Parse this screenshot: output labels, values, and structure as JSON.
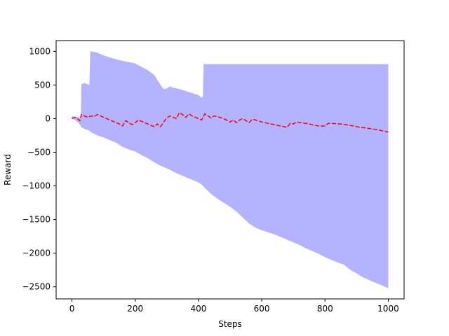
{
  "chart_data": {
    "type": "line",
    "xlabel": "Steps",
    "ylabel": "Reward",
    "xlim": [
      -50,
      1050
    ],
    "ylim": [
      -2680,
      1160
    ],
    "xticks": [
      0,
      200,
      400,
      600,
      800,
      1000
    ],
    "yticks": [
      -2500,
      -2000,
      -1500,
      -1000,
      -500,
      0,
      500,
      1000
    ],
    "grid": false,
    "colors": {
      "band": "#b3b3ff",
      "mean": "#ff0000"
    },
    "series": [
      {
        "type": "band",
        "x": [
          0,
          10,
          20,
          25,
          28,
          30,
          40,
          50,
          55,
          58,
          60,
          80,
          100,
          120,
          140,
          160,
          180,
          200,
          220,
          240,
          260,
          280,
          290,
          300,
          310,
          320,
          340,
          360,
          380,
          400,
          410,
          414,
          416,
          418,
          420,
          440,
          460,
          480,
          500,
          520,
          540,
          560,
          580,
          600,
          620,
          640,
          660,
          680,
          700,
          720,
          740,
          760,
          780,
          800,
          820,
          840,
          860,
          880,
          900,
          920,
          940,
          960,
          980,
          990,
          1000
        ],
        "upper": [
          40,
          30,
          20,
          15,
          10,
          510,
          530,
          510,
          500,
          1010,
          1000,
          980,
          940,
          910,
          880,
          860,
          840,
          820,
          770,
          720,
          650,
          500,
          440,
          450,
          480,
          460,
          440,
          410,
          380,
          350,
          310,
          330,
          820,
          810,
          810,
          810,
          810,
          810,
          810,
          810,
          810,
          810,
          810,
          810,
          810,
          810,
          810,
          810,
          810,
          810,
          810,
          810,
          810,
          810,
          810,
          810,
          810,
          810,
          810,
          810,
          810,
          810,
          810,
          810,
          810
        ],
        "lower": [
          0,
          -20,
          -60,
          -90,
          -110,
          -130,
          -150,
          -170,
          -180,
          -190,
          -200,
          -250,
          -280,
          -320,
          -360,
          -420,
          -460,
          -490,
          -540,
          -590,
          -650,
          -700,
          -720,
          -740,
          -760,
          -790,
          -830,
          -870,
          -910,
          -950,
          -980,
          -1000,
          -1010,
          -1020,
          -1030,
          -1120,
          -1190,
          -1250,
          -1310,
          -1380,
          -1470,
          -1560,
          -1620,
          -1660,
          -1690,
          -1720,
          -1760,
          -1800,
          -1840,
          -1880,
          -1930,
          -1970,
          -2010,
          -2060,
          -2100,
          -2140,
          -2170,
          -2250,
          -2300,
          -2360,
          -2400,
          -2440,
          -2480,
          -2500,
          -2520
        ]
      },
      {
        "type": "line",
        "style": "dashed",
        "x": [
          0,
          10,
          20,
          25,
          30,
          40,
          50,
          60,
          70,
          80,
          100,
          120,
          140,
          150,
          160,
          170,
          180,
          190,
          200,
          210,
          220,
          240,
          260,
          270,
          280,
          290,
          300,
          310,
          320,
          330,
          340,
          350,
          360,
          370,
          380,
          400,
          410,
          420,
          440,
          450,
          460,
          480,
          500,
          510,
          520,
          530,
          540,
          560,
          570,
          580,
          600,
          620,
          640,
          660,
          680,
          690,
          700,
          710,
          720,
          740,
          760,
          780,
          800,
          810,
          820,
          850,
          880,
          900,
          930,
          960,
          980,
          1000
        ],
        "y": [
          0,
          20,
          -10,
          -30,
          60,
          40,
          20,
          40,
          30,
          60,
          20,
          -20,
          -60,
          -80,
          -110,
          -30,
          -60,
          -90,
          -60,
          -20,
          -40,
          -80,
          -120,
          -80,
          -120,
          -50,
          10,
          40,
          20,
          0,
          90,
          60,
          20,
          70,
          40,
          0,
          -20,
          70,
          10,
          40,
          30,
          0,
          -50,
          -20,
          -60,
          -20,
          0,
          -60,
          -10,
          -20,
          -50,
          -70,
          -90,
          -110,
          -130,
          -70,
          -80,
          -50,
          -60,
          -70,
          -90,
          -110,
          -110,
          -70,
          -70,
          -80,
          -100,
          -120,
          -140,
          -160,
          -180,
          -200
        ]
      }
    ]
  }
}
